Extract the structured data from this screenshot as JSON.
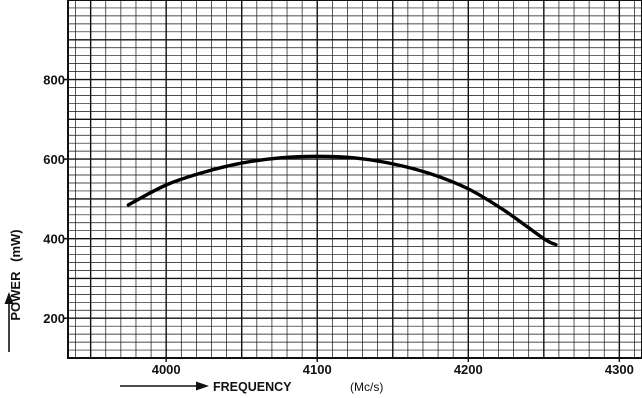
{
  "chart_data": {
    "type": "line",
    "xlabel": "FREQUENCY",
    "xunit": "(Mc/s)",
    "ylabel": "POWER",
    "yunit": "(mW)",
    "xlim": [
      3935,
      4315
    ],
    "ylim": [
      100,
      1000
    ],
    "x_ticks": [
      4000,
      4100,
      4200,
      4300
    ],
    "x_tick_labels": [
      "4000",
      "4100",
      "4200",
      "4300"
    ],
    "y_ticks": [
      200,
      400,
      600,
      800
    ],
    "y_tick_labels": [
      "200",
      "400",
      "600",
      "800"
    ],
    "grid": true,
    "series": [
      {
        "x": [
          3975,
          4000,
          4025,
          4050,
          4075,
          4100,
          4125,
          4150,
          4175,
          4200,
          4225,
          4250,
          4258
        ],
        "y": [
          485,
          535,
          567,
          590,
          603,
          607,
          603,
          588,
          563,
          525,
          468,
          400,
          385
        ]
      }
    ]
  }
}
